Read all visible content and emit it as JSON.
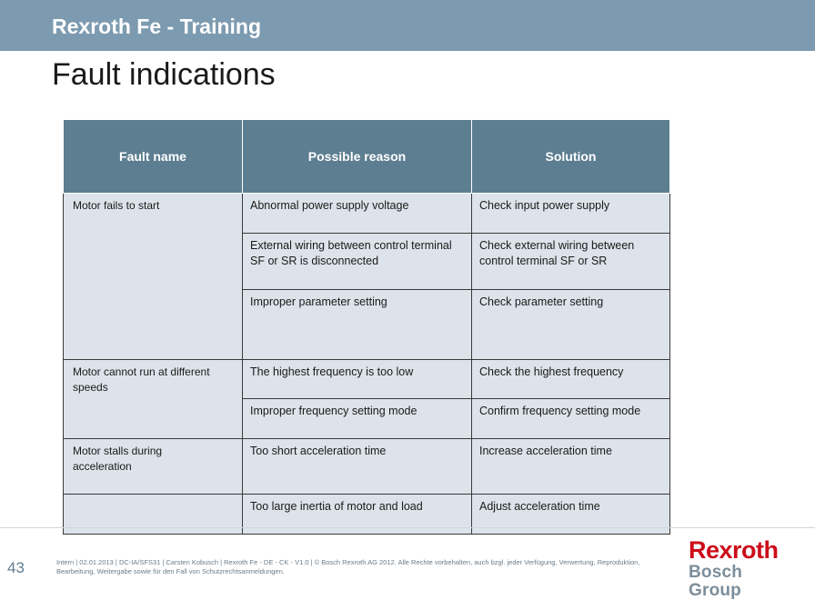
{
  "header": {
    "brand": "Rexroth Fe - Training",
    "title": "Fault indications"
  },
  "table": {
    "columns": [
      "Fault name",
      "Possible reason",
      "Solution"
    ],
    "rows": [
      {
        "fault": "Motor fails to start",
        "reason": "Abnormal power supply voltage",
        "solution": "Check input power supply"
      },
      {
        "fault": "",
        "reason": "External wiring between control terminal SF or SR is disconnected",
        "solution": "Check external wiring between control terminal SF or SR"
      },
      {
        "fault": "",
        "reason": "Improper parameter setting",
        "solution": "Check parameter setting"
      },
      {
        "fault": "Motor cannot run at different speeds",
        "reason": "The highest frequency is too low",
        "solution": "Check the highest frequency"
      },
      {
        "fault": "",
        "reason": "Improper frequency setting mode",
        "solution": "Confirm frequency setting mode"
      },
      {
        "fault": "Motor stalls during acceleration",
        "reason": "Too short acceleration time",
        "solution": "Increase acceleration time"
      },
      {
        "fault": "",
        "reason": "Too large inertia of motor and load",
        "solution": "Adjust acceleration time"
      }
    ]
  },
  "footer": {
    "page_number": "43",
    "legal": "Intern | 02.01.2013 | DC-IA/SFS31 | Carsten Kobusch | Rexroth Fe - DE - CK - V1.0 | © Bosch Rexroth AG 2012. Alle Rechte vorbehalten, auch bzgl. jeder Verfügung, Verwertung, Reproduktion, Bearbeitung, Weitergabe sowie für den Fall von Schutzrechtsanmeldungen."
  },
  "logo": {
    "line1": "Rexroth",
    "line2": "Bosch Group"
  },
  "colors": {
    "header_bar": "#7c9bb0",
    "table_header": "#5d7e91",
    "table_cell": "#dde3ea",
    "logo_red": "#cc0e1a"
  }
}
